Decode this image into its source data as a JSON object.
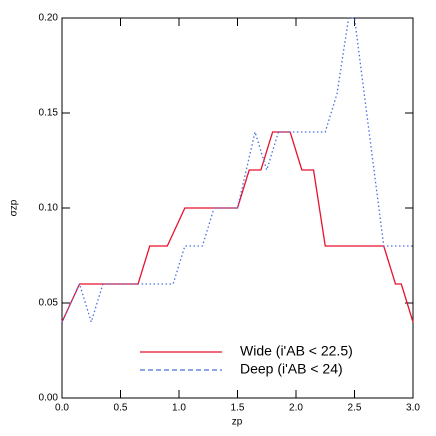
{
  "chart_data": {
    "type": "line",
    "x_label": "zp",
    "y_label": "σzp",
    "xlim": [
      0,
      3
    ],
    "ylim": [
      0,
      0.2
    ],
    "xticks": [
      {
        "value": 0,
        "label": "0.0"
      },
      {
        "value": 0.5,
        "label": "0.5"
      },
      {
        "value": 1,
        "label": "1.0"
      },
      {
        "value": 1.5,
        "label": "1.5"
      },
      {
        "value": 2,
        "label": "2.0"
      },
      {
        "value": 2.5,
        "label": "2.5"
      },
      {
        "value": 3,
        "label": "3.0"
      }
    ],
    "yticks": [
      {
        "value": 0,
        "label": "0.00"
      },
      {
        "value": 0.05,
        "label": "0.05"
      },
      {
        "value": 0.1,
        "label": "0.10"
      },
      {
        "value": 0.15,
        "label": "0.15"
      },
      {
        "value": 0.2,
        "label": "0.20"
      }
    ],
    "legend": "lower right",
    "series": [
      {
        "name": "Wide (i'AB < 22.5)",
        "color": "#e8112d",
        "dash": "solid",
        "x": [
          0,
          0.15,
          0.65,
          0.75,
          0.9,
          1.05,
          1.5,
          1.6,
          1.7,
          1.8,
          1.95,
          2.05,
          2.15,
          2.25,
          2.75,
          2.85,
          2.9,
          3.0
        ],
        "values": [
          0.04,
          0.06,
          0.06,
          0.08,
          0.08,
          0.1,
          0.1,
          0.12,
          0.12,
          0.14,
          0.14,
          0.12,
          0.12,
          0.08,
          0.08,
          0.06,
          0.06,
          0.04
        ]
      },
      {
        "name": "Deep (i'AB < 24)",
        "color": "#4a6fe0",
        "dash": "dotted",
        "x": [
          0,
          0.15,
          0.25,
          0.35,
          0.95,
          1.05,
          1.2,
          1.3,
          1.5,
          1.65,
          1.75,
          1.85,
          2.25,
          2.35,
          2.45,
          2.5,
          2.75,
          3.0
        ],
        "values": [
          0.04,
          0.06,
          0.04,
          0.06,
          0.06,
          0.08,
          0.08,
          0.1,
          0.1,
          0.14,
          0.12,
          0.14,
          0.14,
          0.16,
          0.2,
          0.2,
          0.08,
          0.08
        ]
      }
    ]
  }
}
